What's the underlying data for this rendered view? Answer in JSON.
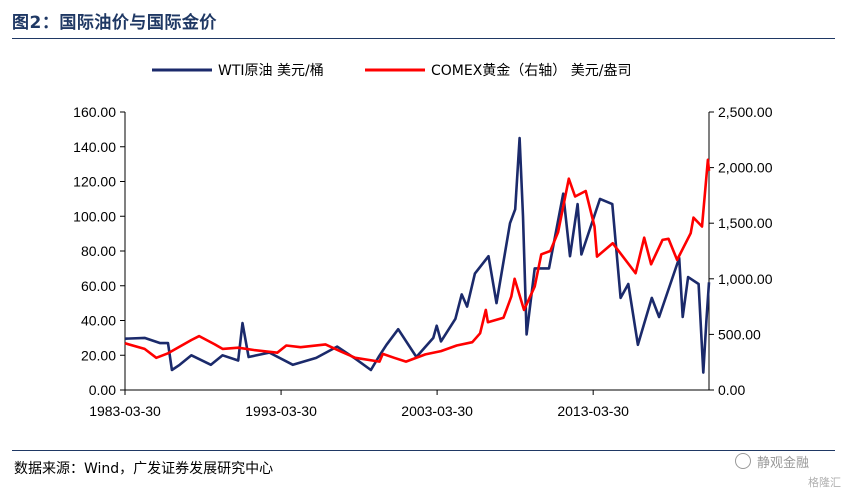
{
  "figure": {
    "title": "图2：国际油价与国际金价",
    "source": "数据来源：Wind，广发证券发展研究中心",
    "watermark": "静观金融",
    "watermark_sub": "格隆汇"
  },
  "chart_data": {
    "type": "line",
    "x_tick_labels": [
      "1983-03-30",
      "1993-03-30",
      "2003-03-30",
      "2013-03-30"
    ],
    "x_ticks": [
      "1983-03-30",
      "1993-03-30",
      "2003-03-30",
      "2013-03-30"
    ],
    "x_range": [
      "1983-03-30",
      "2020-08-31"
    ],
    "y_left": {
      "ticks": [
        "0.00",
        "20.00",
        "40.00",
        "60.00",
        "80.00",
        "100.00",
        "120.00",
        "140.00",
        "160.00"
      ],
      "range": [
        0,
        160
      ]
    },
    "y_right": {
      "ticks": [
        "0.00",
        "500.00",
        "1,000.00",
        "1,500.00",
        "2,000.00",
        "2,500.00"
      ],
      "range": [
        0,
        2500
      ]
    },
    "legend_position": "top",
    "grid": false,
    "series": [
      {
        "name": "WTI原油 美元/桶",
        "axis": "left",
        "color": "#1b2a6b",
        "points": [
          [
            "1983-03-30",
            29.5
          ],
          [
            "1984-06-30",
            30.0
          ],
          [
            "1985-06-30",
            27.0
          ],
          [
            "1985-12-31",
            27.0
          ],
          [
            "1986-04-01",
            11.5
          ],
          [
            "1986-09-30",
            14.5
          ],
          [
            "1987-06-30",
            20.0
          ],
          [
            "1988-09-30",
            14.5
          ],
          [
            "1989-06-30",
            20.0
          ],
          [
            "1990-06-30",
            17.0
          ],
          [
            "1990-10-10",
            38.5
          ],
          [
            "1991-02-28",
            19.0
          ],
          [
            "1992-06-30",
            21.5
          ],
          [
            "1993-12-31",
            14.5
          ],
          [
            "1995-06-30",
            18.5
          ],
          [
            "1996-10-31",
            25.0
          ],
          [
            "1997-12-31",
            18.0
          ],
          [
            "1998-12-31",
            11.5
          ],
          [
            "1999-06-30",
            19.0
          ],
          [
            "1999-12-31",
            26.0
          ],
          [
            "2000-09-30",
            35.0
          ],
          [
            "2001-11-30",
            19.0
          ],
          [
            "2002-12-31",
            30.0
          ],
          [
            "2003-03-20",
            37.0
          ],
          [
            "2003-06-30",
            28.0
          ],
          [
            "2004-05-31",
            41.0
          ],
          [
            "2004-10-25",
            55.0
          ],
          [
            "2005-02-28",
            48.0
          ],
          [
            "2005-08-31",
            67.0
          ],
          [
            "2006-07-14",
            77.0
          ],
          [
            "2007-01-18",
            50.0
          ],
          [
            "2007-11-30",
            96.0
          ],
          [
            "2008-03-31",
            104.0
          ],
          [
            "2008-07-11",
            145.0
          ],
          [
            "2008-09-30",
            100.0
          ],
          [
            "2008-12-22",
            32.0
          ],
          [
            "2009-06-30",
            70.0
          ],
          [
            "2010-05-31",
            70.0
          ],
          [
            "2011-04-29",
            113.0
          ],
          [
            "2011-10-04",
            77.0
          ],
          [
            "2012-03-31",
            107.0
          ],
          [
            "2012-06-28",
            78.0
          ],
          [
            "2013-09-06",
            110.0
          ],
          [
            "2014-06-20",
            107.0
          ],
          [
            "2014-12-31",
            53.0
          ],
          [
            "2015-06-30",
            61.0
          ],
          [
            "2016-02-11",
            26.0
          ],
          [
            "2016-12-31",
            53.0
          ],
          [
            "2017-06-21",
            42.0
          ],
          [
            "2018-10-03",
            76.0
          ],
          [
            "2018-12-24",
            42.0
          ],
          [
            "2019-04-30",
            65.0
          ],
          [
            "2019-12-31",
            61.0
          ],
          [
            "2020-04-20",
            10.0
          ],
          [
            "2020-06-30",
            40.0
          ],
          [
            "2020-08-31",
            62.0
          ]
        ]
      },
      {
        "name": "COMEX黄金（右轴） 美元/盎司",
        "axis": "right",
        "color": "#ff0000",
        "points": [
          [
            "1983-03-30",
            420
          ],
          [
            "1984-06-30",
            370
          ],
          [
            "1985-03-31",
            290
          ],
          [
            "1985-12-31",
            330
          ],
          [
            "1987-06-30",
            450
          ],
          [
            "1987-12-31",
            485
          ],
          [
            "1988-12-31",
            410
          ],
          [
            "1989-06-30",
            370
          ],
          [
            "1990-06-30",
            380
          ],
          [
            "1991-06-30",
            360
          ],
          [
            "1992-12-31",
            335
          ],
          [
            "1993-07-30",
            400
          ],
          [
            "1994-06-30",
            385
          ],
          [
            "1996-02-02",
            410
          ],
          [
            "1997-01-31",
            345
          ],
          [
            "1997-12-31",
            290
          ],
          [
            "1999-07-20",
            255
          ],
          [
            "1999-10-05",
            325
          ],
          [
            "2000-06-30",
            290
          ],
          [
            "2001-04-02",
            255
          ],
          [
            "2002-06-30",
            320
          ],
          [
            "2003-06-30",
            350
          ],
          [
            "2004-06-30",
            400
          ],
          [
            "2005-06-30",
            430
          ],
          [
            "2005-12-31",
            510
          ],
          [
            "2006-05-12",
            720
          ],
          [
            "2006-06-30",
            610
          ],
          [
            "2007-06-30",
            650
          ],
          [
            "2007-12-31",
            840
          ],
          [
            "2008-03-17",
            1000
          ],
          [
            "2008-10-24",
            720
          ],
          [
            "2009-06-30",
            930
          ],
          [
            "2009-12-03",
            1220
          ],
          [
            "2010-06-30",
            1250
          ],
          [
            "2010-12-31",
            1420
          ],
          [
            "2011-09-06",
            1900
          ],
          [
            "2012-01-31",
            1740
          ],
          [
            "2012-10-05",
            1790
          ],
          [
            "2013-04-30",
            1470
          ],
          [
            "2013-06-28",
            1200
          ],
          [
            "2014-06-30",
            1320
          ],
          [
            "2015-12-17",
            1050
          ],
          [
            "2016-07-06",
            1370
          ],
          [
            "2016-12-15",
            1130
          ],
          [
            "2017-09-08",
            1350
          ],
          [
            "2018-01-25",
            1360
          ],
          [
            "2018-08-16",
            1170
          ],
          [
            "2019-06-30",
            1410
          ],
          [
            "2019-09-04",
            1550
          ],
          [
            "2020-03-19",
            1470
          ],
          [
            "2020-08-06",
            2070
          ],
          [
            "2020-08-31",
            1970
          ]
        ]
      }
    ]
  }
}
